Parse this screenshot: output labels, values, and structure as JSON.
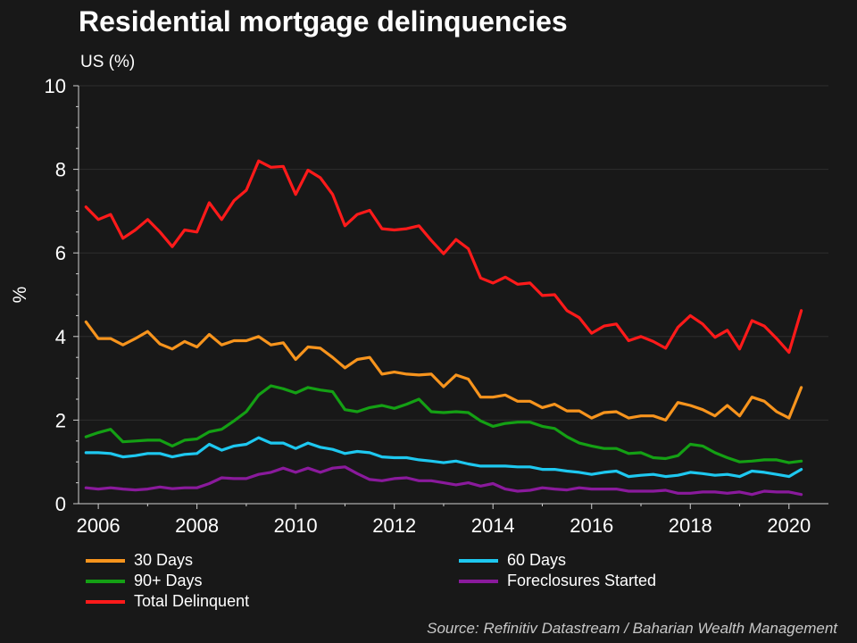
{
  "title": "Residential mortgage delinquencies",
  "subtitle": "US (%)",
  "source": "Source: Refinitiv Datastream / Baharian Wealth Management",
  "chart_data": {
    "type": "line",
    "title": "Residential mortgage delinquencies",
    "subtitle": "US (%)",
    "ylabel": "%",
    "xlabel": "",
    "ylim": [
      0,
      10
    ],
    "xlim": [
      2005.6,
      2020.8
    ],
    "yticks": [
      0,
      2,
      4,
      6,
      8,
      10
    ],
    "xticks": [
      2006,
      2008,
      2010,
      2012,
      2014,
      2016,
      2018,
      2020
    ],
    "grid": true,
    "legend_position": "bottom",
    "x_start": 2005.75,
    "x_step": 0.25,
    "series": [
      {
        "name": "30 Days",
        "color": "#f7941d",
        "values": [
          4.35,
          3.95,
          3.95,
          3.8,
          3.95,
          4.12,
          3.82,
          3.7,
          3.88,
          3.75,
          4.05,
          3.8,
          3.9,
          3.9,
          4.0,
          3.8,
          3.85,
          3.45,
          3.75,
          3.72,
          3.5,
          3.25,
          3.45,
          3.5,
          3.1,
          3.15,
          3.1,
          3.08,
          3.1,
          2.8,
          3.08,
          2.98,
          2.55,
          2.55,
          2.6,
          2.45,
          2.45,
          2.3,
          2.38,
          2.22,
          2.22,
          2.05,
          2.18,
          2.2,
          2.05,
          2.1,
          2.1,
          2.0,
          2.42,
          2.35,
          2.25,
          2.1,
          2.35,
          2.1,
          2.55,
          2.45,
          2.2,
          2.05,
          2.78
        ]
      },
      {
        "name": "60 Days",
        "color": "#1ec8f0",
        "values": [
          1.22,
          1.22,
          1.2,
          1.12,
          1.15,
          1.2,
          1.2,
          1.12,
          1.18,
          1.2,
          1.42,
          1.28,
          1.38,
          1.42,
          1.58,
          1.45,
          1.45,
          1.32,
          1.45,
          1.35,
          1.3,
          1.2,
          1.25,
          1.22,
          1.12,
          1.1,
          1.1,
          1.05,
          1.02,
          0.98,
          1.02,
          0.95,
          0.9,
          0.9,
          0.9,
          0.88,
          0.88,
          0.82,
          0.82,
          0.78,
          0.75,
          0.7,
          0.75,
          0.78,
          0.65,
          0.68,
          0.7,
          0.65,
          0.68,
          0.75,
          0.72,
          0.68,
          0.7,
          0.65,
          0.78,
          0.75,
          0.7,
          0.65,
          0.82
        ]
      },
      {
        "name": "90+ Days",
        "color": "#14a014",
        "values": [
          1.6,
          1.7,
          1.78,
          1.48,
          1.5,
          1.52,
          1.52,
          1.38,
          1.52,
          1.55,
          1.72,
          1.78,
          1.98,
          2.2,
          2.6,
          2.82,
          2.75,
          2.65,
          2.78,
          2.72,
          2.68,
          2.25,
          2.2,
          2.3,
          2.35,
          2.28,
          2.38,
          2.5,
          2.2,
          2.18,
          2.2,
          2.18,
          1.98,
          1.85,
          1.92,
          1.95,
          1.95,
          1.85,
          1.8,
          1.6,
          1.45,
          1.38,
          1.32,
          1.32,
          1.2,
          1.22,
          1.1,
          1.08,
          1.15,
          1.42,
          1.38,
          1.22,
          1.1,
          1.0,
          1.02,
          1.05,
          1.05,
          0.98,
          1.02
        ]
      },
      {
        "name": "Foreclosures Started",
        "color": "#8a1a9c",
        "values": [
          0.38,
          0.35,
          0.38,
          0.35,
          0.33,
          0.35,
          0.4,
          0.36,
          0.38,
          0.38,
          0.48,
          0.62,
          0.6,
          0.6,
          0.7,
          0.75,
          0.85,
          0.75,
          0.85,
          0.75,
          0.85,
          0.88,
          0.72,
          0.58,
          0.55,
          0.6,
          0.62,
          0.55,
          0.55,
          0.5,
          0.45,
          0.5,
          0.42,
          0.48,
          0.35,
          0.3,
          0.32,
          0.38,
          0.35,
          0.33,
          0.38,
          0.35,
          0.35,
          0.35,
          0.3,
          0.3,
          0.3,
          0.32,
          0.25,
          0.25,
          0.28,
          0.28,
          0.25,
          0.28,
          0.22,
          0.3,
          0.28,
          0.28,
          0.22
        ]
      },
      {
        "name": "Total Delinquent",
        "color": "#ff1a1a",
        "values": [
          7.1,
          6.8,
          6.92,
          6.35,
          6.55,
          6.8,
          6.5,
          6.15,
          6.55,
          6.5,
          7.2,
          6.8,
          7.25,
          7.5,
          8.2,
          8.05,
          8.07,
          7.4,
          7.98,
          7.8,
          7.4,
          6.65,
          6.92,
          7.02,
          6.58,
          6.55,
          6.58,
          6.65,
          6.3,
          5.98,
          6.32,
          6.1,
          5.4,
          5.28,
          5.42,
          5.25,
          5.28,
          4.98,
          5.0,
          4.62,
          4.45,
          4.08,
          4.25,
          4.3,
          3.9,
          4.0,
          3.88,
          3.72,
          4.22,
          4.5,
          4.3,
          3.98,
          4.15,
          3.7,
          4.38,
          4.25,
          3.95,
          3.62,
          4.62
        ]
      }
    ]
  }
}
